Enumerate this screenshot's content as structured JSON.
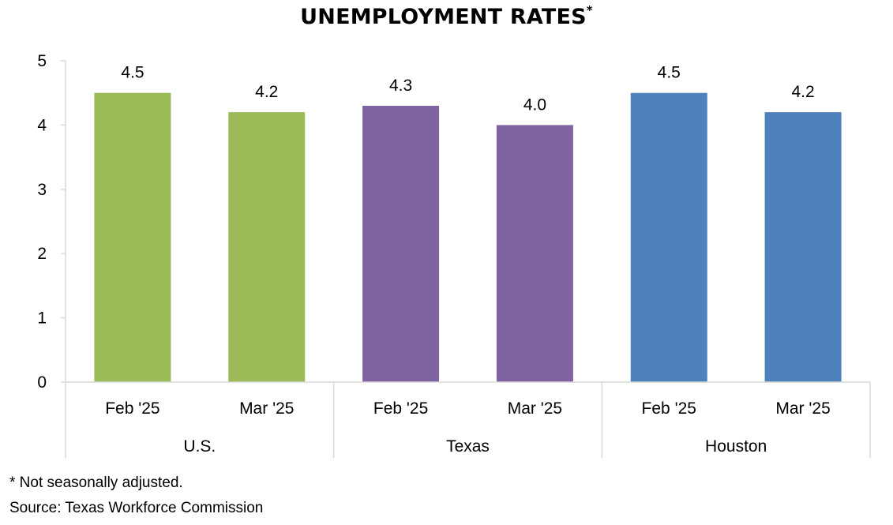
{
  "title": "UNEMPLOYMENT RATES",
  "title_marker": "*",
  "footnote": "* Not seasonally adjusted.",
  "source": "Source: Texas Workforce Commission",
  "chart_data": {
    "type": "bar",
    "title": "UNEMPLOYMENT RATES*",
    "ylim": [
      0,
      5
    ],
    "yticks": [
      "0",
      "1",
      "2",
      "3",
      "4",
      "5"
    ],
    "grid": false,
    "legend": "none",
    "groups": [
      {
        "name": "U.S.",
        "color": "#9BBB59",
        "bars": [
          {
            "label": "Feb '25",
            "value": 4.5,
            "text": "4.5"
          },
          {
            "label": "Mar '25",
            "value": 4.2,
            "text": "4.2"
          }
        ]
      },
      {
        "name": "Texas",
        "color": "#8064A2",
        "bars": [
          {
            "label": "Feb '25",
            "value": 4.3,
            "text": "4.3"
          },
          {
            "label": "Mar '25",
            "value": 4.0,
            "text": "4.0"
          }
        ]
      },
      {
        "name": "Houston",
        "color": "#4F81BD",
        "bars": [
          {
            "label": "Feb '25",
            "value": 4.5,
            "text": "4.5"
          },
          {
            "label": "Mar '25",
            "value": 4.2,
            "text": "4.2"
          }
        ]
      }
    ]
  }
}
